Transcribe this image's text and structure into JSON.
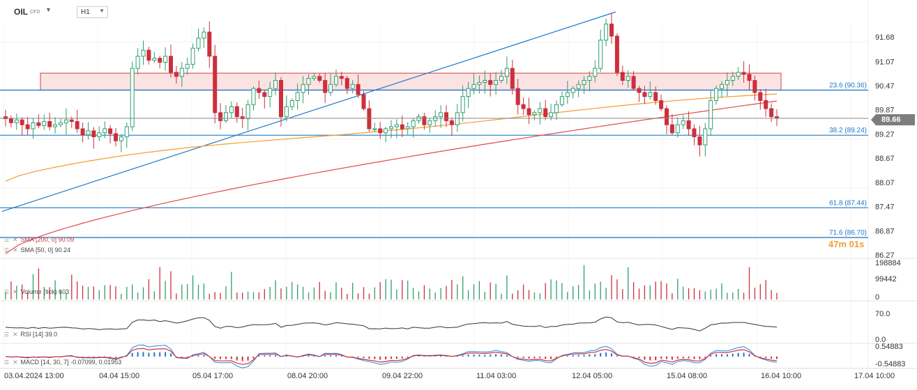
{
  "header": {
    "symbol": "OIL",
    "symbol_type": "CFD",
    "timeframe": "H1"
  },
  "last_price": "89.66",
  "timer": "47m 01s",
  "price_axis": [
    "91.68",
    "91.07",
    "90.47",
    "89.87",
    "89.27",
    "88.67",
    "88.07",
    "87.47",
    "86.87",
    "86.27"
  ],
  "fib_levels": [
    {
      "label": "23.6 (90.36)",
      "value": 90.36
    },
    {
      "label": "38.2 (89.24)",
      "value": 89.24
    },
    {
      "label": "61.8 (87.44)",
      "value": 87.44
    },
    {
      "label": "71.6 (86.70)",
      "value": 86.7
    }
  ],
  "indicators": {
    "sma200": "SMA [200, 0] 90.09",
    "sma50": "SMA [50, 0] 90.24",
    "volume": "Volume (tick) 603",
    "rsi": "RSI [14] 39.0",
    "macd": "MACD [14, 30, 7] -0.07099, 0.01953"
  },
  "volume_axis": [
    "198884",
    "99442",
    "0"
  ],
  "rsi_axis": [
    "70.0",
    "0.0"
  ],
  "macd_axis": [
    "0.54883",
    "-0.54883"
  ],
  "time_axis": [
    "03.04.2024  13:00",
    "04.04  15:00",
    "05.04  17:00",
    "08.04  20:00",
    "09.04  22:00",
    "11.04  03:00",
    "12.04  05:00",
    "15.04  08:00",
    "16.04  10:00",
    "17.04  10:00"
  ],
  "colors": {
    "up": "#2e9e6e",
    "down": "#cc2f3d",
    "sma50": "#f39c2c",
    "sma200": "#e04b4b",
    "fib": "#1f78c8",
    "zone_fill": "#fbe3e3",
    "zone_stroke": "#d23c3c"
  },
  "chart_data": {
    "type": "candlestick",
    "symbol": "OIL",
    "timeframe": "H1",
    "last": 89.66,
    "ylim": [
      86.27,
      92.2
    ],
    "yticks": [
      91.68,
      91.07,
      90.47,
      89.87,
      89.27,
      88.67,
      88.07,
      87.47,
      86.87,
      86.27
    ],
    "resistance_zone": [
      90.36,
      90.78
    ],
    "trendline": {
      "from": 87.35,
      "to": 92.3
    },
    "closes": [
      89.65,
      89.55,
      89.62,
      89.5,
      89.4,
      89.55,
      89.48,
      89.58,
      89.45,
      89.5,
      89.55,
      89.62,
      89.58,
      89.4,
      89.25,
      89.35,
      89.2,
      89.3,
      89.4,
      89.28,
      89.1,
      89.2,
      89.45,
      90.9,
      91.2,
      91.35,
      91.1,
      91.15,
      91.05,
      91.2,
      90.8,
      90.7,
      90.9,
      91.0,
      91.4,
      91.65,
      91.8,
      91.2,
      89.8,
      89.6,
      89.8,
      89.95,
      89.7,
      89.65,
      90.0,
      90.4,
      90.3,
      90.2,
      90.4,
      90.6,
      89.7,
      89.95,
      90.1,
      90.3,
      90.5,
      90.65,
      90.7,
      90.6,
      90.3,
      90.5,
      90.7,
      90.65,
      90.4,
      90.5,
      90.25,
      89.9,
      89.4,
      89.4,
      89.3,
      89.4,
      89.45,
      89.5,
      89.4,
      89.45,
      89.6,
      89.7,
      89.5,
      89.6,
      89.7,
      89.8,
      89.6,
      89.5,
      89.8,
      90.2,
      90.4,
      90.5,
      90.55,
      90.6,
      90.5,
      90.6,
      90.7,
      90.9,
      90.4,
      90.0,
      89.9,
      89.75,
      89.8,
      89.9,
      89.7,
      89.8,
      90.0,
      90.2,
      90.3,
      90.4,
      90.5,
      90.6,
      90.7,
      90.9,
      91.6,
      92.0,
      91.7,
      90.8,
      90.6,
      90.7,
      90.4,
      90.3,
      90.2,
      90.3,
      90.1,
      89.9,
      89.5,
      89.3,
      89.5,
      89.6,
      89.4,
      89.2,
      89.0,
      89.4,
      90.1,
      90.4,
      90.5,
      90.6,
      90.7,
      90.8,
      90.75,
      90.6,
      90.3,
      90.1,
      89.9,
      89.7,
      89.66
    ],
    "sma50": {
      "name": "SMA [50, 0] 90.24",
      "start": 88.1,
      "end": 90.24
    },
    "sma200": {
      "name": "SMA [200, 0] 90.09",
      "start": 86.3,
      "end": 90.09
    },
    "volume_max": 198884,
    "rsi": {
      "last": 39.0,
      "level": 70.0
    },
    "macd": {
      "last": -0.07099,
      "signal": 0.01953,
      "range": [
        -0.54883,
        0.54883
      ]
    }
  }
}
